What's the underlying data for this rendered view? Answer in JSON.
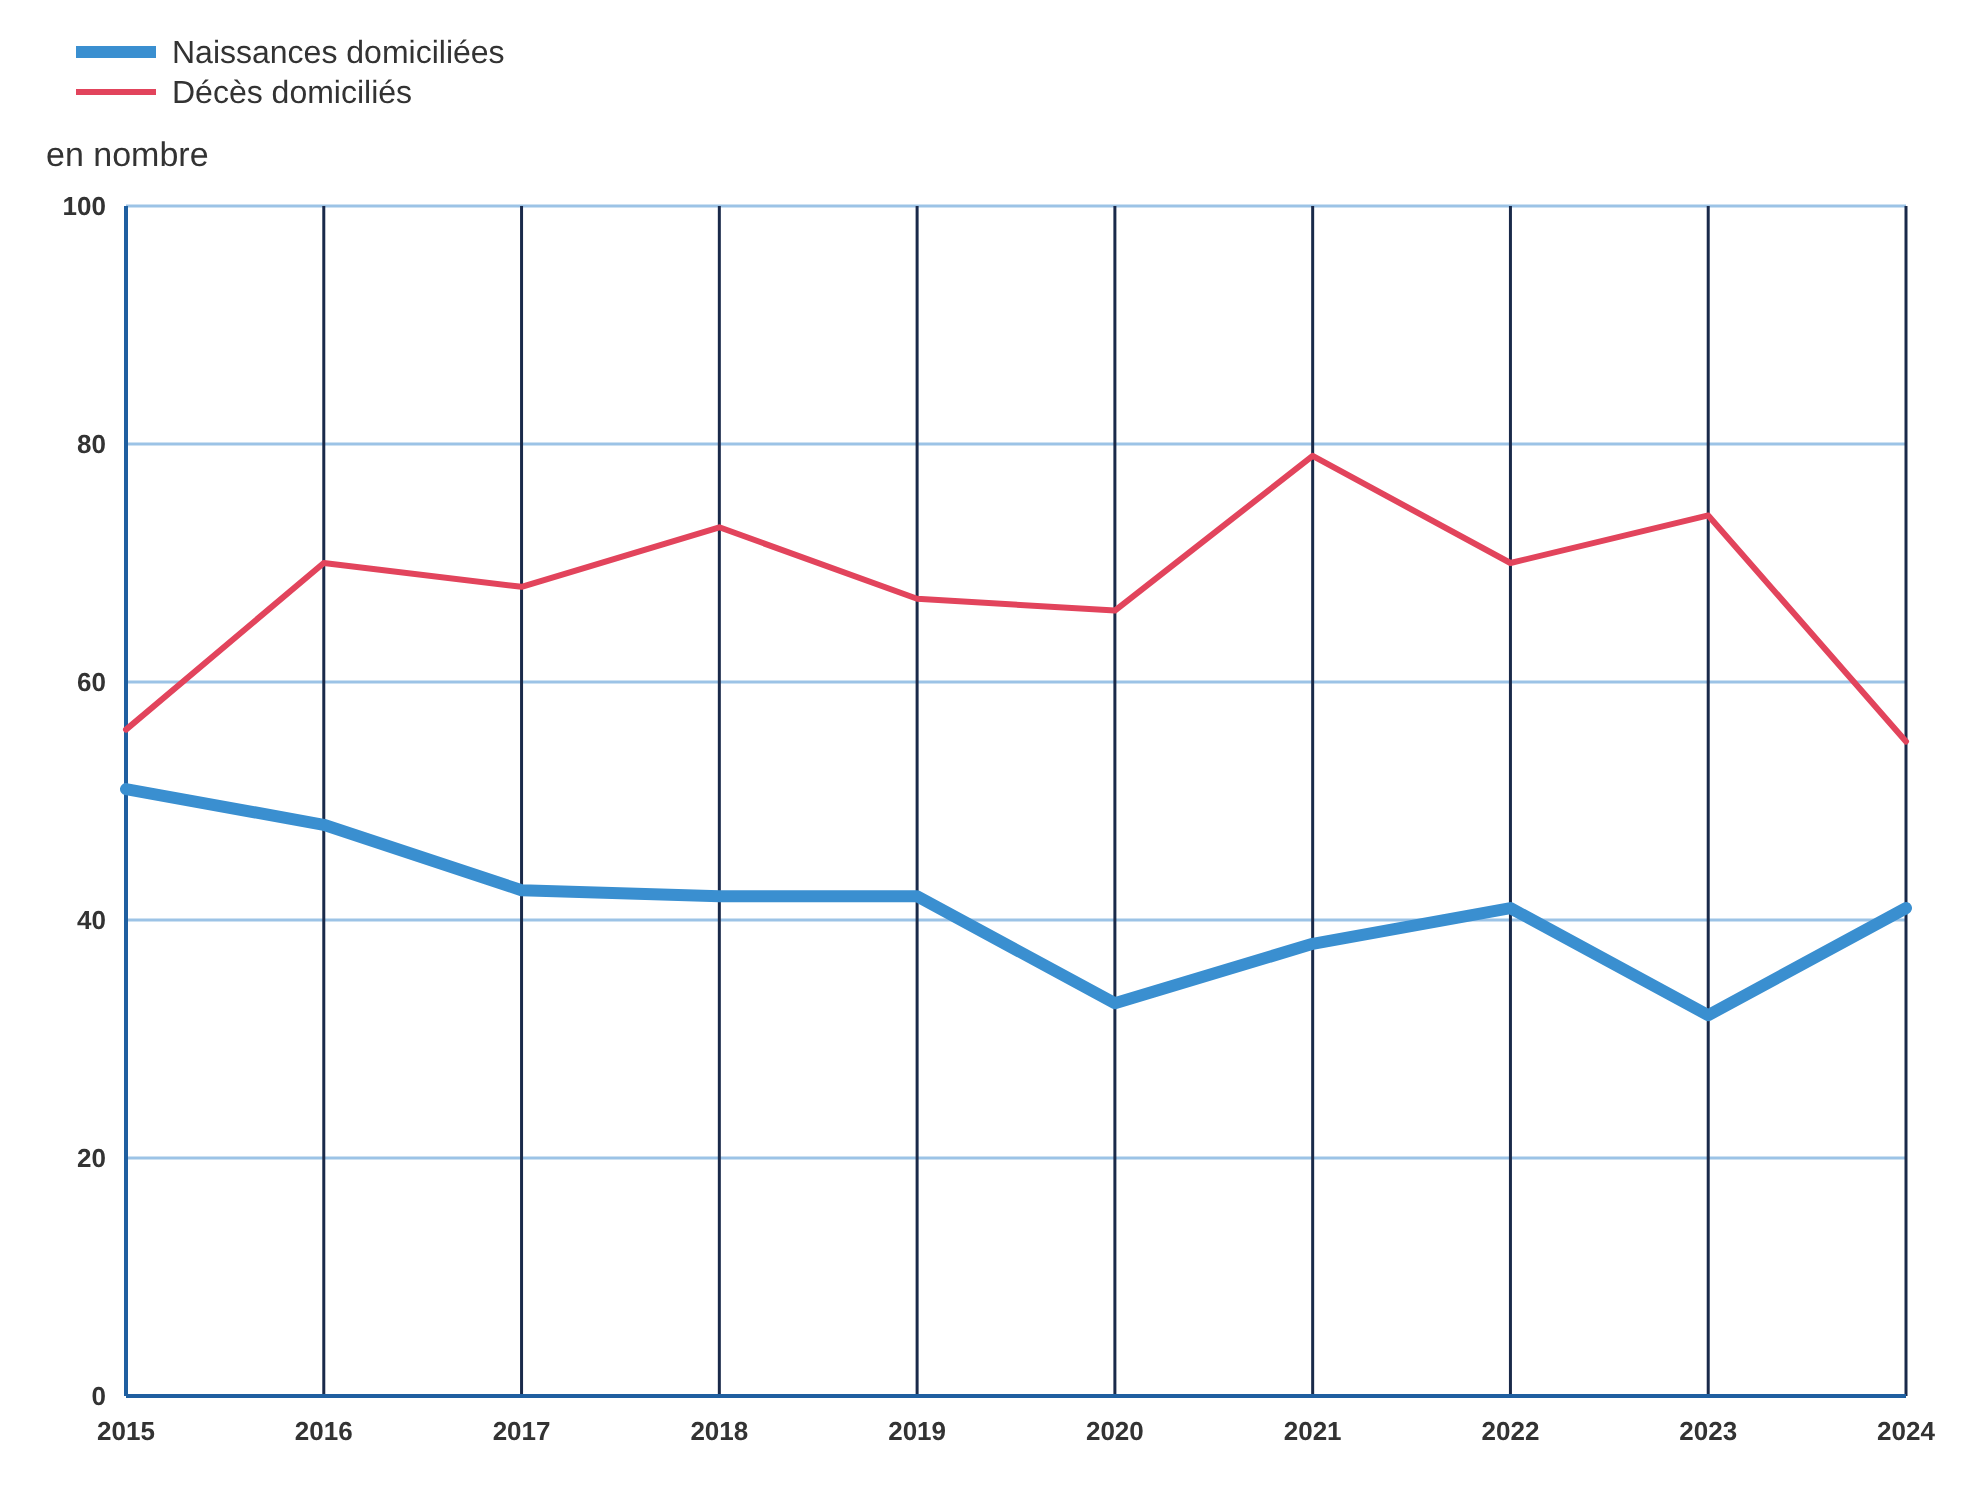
{
  "chart_data": {
    "type": "line",
    "ylabel": "en nombre",
    "x": [
      2015,
      2016,
      2017,
      2018,
      2019,
      2020,
      2021,
      2022,
      2023,
      2024
    ],
    "xlim": [
      2015,
      2024
    ],
    "xticks": [
      2015,
      2016,
      2017,
      2018,
      2019,
      2020,
      2021,
      2022,
      2023,
      2024
    ],
    "ylim": [
      0,
      100
    ],
    "yticks": [
      0,
      20,
      40,
      60,
      80,
      100
    ],
    "grid": true,
    "legend": "top left",
    "marker": "none",
    "line_style": "solid",
    "series": [
      {
        "name": "Naissances domiciliées",
        "color": "#3a8fd0",
        "values": [
          51,
          48,
          42.5,
          42,
          42,
          33,
          38,
          41,
          32,
          41
        ]
      },
      {
        "name": "Décès domiciliés",
        "color": "#e2445c",
        "values": [
          56,
          70,
          68,
          73,
          67,
          66,
          79,
          70,
          74,
          55
        ]
      }
    ]
  }
}
